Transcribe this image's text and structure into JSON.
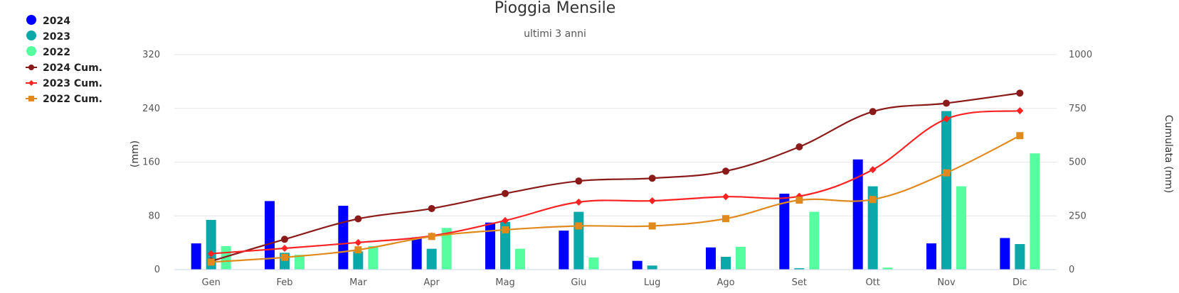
{
  "chart_data": {
    "type": "bar",
    "title": "Pioggia Mensile",
    "subtitle": "ultimi 3 anni",
    "categories": [
      "Gen",
      "Feb",
      "Mar",
      "Apr",
      "Mag",
      "Giu",
      "Lug",
      "Ago",
      "Set",
      "Ott",
      "Nov",
      "Dic"
    ],
    "ylabel": "(mm)",
    "ylabel_right": "Cumulata (mm)",
    "ylim": [
      0,
      320
    ],
    "ylim_right": [
      0,
      1000
    ],
    "yticks": [
      0,
      80,
      160,
      240,
      320
    ],
    "yticks_right": [
      0,
      250,
      500,
      750,
      1000
    ],
    "grid": true,
    "legend_position": "top-left",
    "bar_series": [
      {
        "name": "2024",
        "color": "#0000ff",
        "values": [
          39,
          102,
          95,
          48,
          70,
          58,
          13,
          33,
          113,
          164,
          39,
          47
        ]
      },
      {
        "name": "2023",
        "color": "#0aa8a8",
        "values": [
          74,
          25,
          27,
          31,
          71,
          86,
          6,
          19,
          2,
          124,
          236,
          38
        ]
      },
      {
        "name": "2022",
        "color": "#55ff9f",
        "values": [
          35,
          22,
          35,
          62,
          31,
          18,
          0,
          34,
          86,
          3,
          124,
          173
        ]
      }
    ],
    "line_series": [
      {
        "name": "2024 Cum.",
        "color": "#8b1a1a",
        "marker": "circle",
        "axis": "right",
        "values": [
          39,
          141,
          236,
          284,
          354,
          412,
          425,
          458,
          571,
          735,
          774,
          821
        ]
      },
      {
        "name": "2023 Cum.",
        "color": "#ff2222",
        "marker": "diamond",
        "axis": "right",
        "values": [
          74,
          99,
          126,
          157,
          228,
          314,
          320,
          339,
          341,
          465,
          701,
          739
        ]
      },
      {
        "name": "2022 Cum.",
        "color": "#e08a1e",
        "marker": "square",
        "axis": "right",
        "values": [
          35,
          57,
          92,
          154,
          185,
          203,
          203,
          237,
          323,
          326,
          450,
          623
        ]
      }
    ]
  }
}
